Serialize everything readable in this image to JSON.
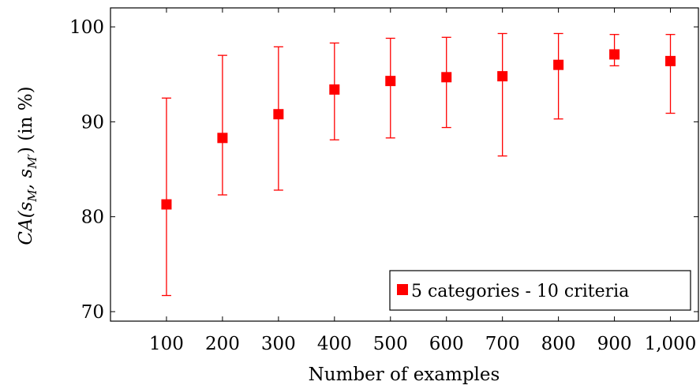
{
  "chart_data": {
    "type": "scatter",
    "xlabel": "Number of examples",
    "ylabel": "CA(s_M, s_M') (in %)",
    "ylabel_parts": {
      "prefix": "CA(s",
      "sub1": "M",
      "mid": ", s",
      "sub2": "M′",
      "suffix": ") (in %)"
    },
    "x_tick_labels": [
      "100",
      "200",
      "300",
      "400",
      "500",
      "600",
      "700",
      "800",
      "900",
      "1,000"
    ],
    "y_ticks": [
      70,
      80,
      90,
      100
    ],
    "y_tick_labels": [
      "70",
      "80",
      "90",
      "100"
    ],
    "xlim": [
      0,
      1050
    ],
    "ylim": [
      69,
      102
    ],
    "grid": false,
    "legend_position": "bottom-right",
    "series": [
      {
        "name": "5 categories - 10 criteria",
        "color": "#ff0000",
        "marker": "square",
        "x": [
          100,
          200,
          300,
          400,
          500,
          600,
          700,
          800,
          900,
          1000
        ],
        "y": [
          81.3,
          88.3,
          90.8,
          93.4,
          94.3,
          94.7,
          94.8,
          96.0,
          97.1,
          96.4
        ],
        "y_low": [
          71.7,
          82.3,
          82.8,
          88.1,
          88.3,
          89.4,
          86.4,
          90.3,
          95.9,
          90.9
        ],
        "y_high": [
          92.5,
          97.0,
          97.9,
          98.3,
          98.8,
          98.9,
          99.3,
          99.3,
          99.2,
          99.2
        ]
      }
    ]
  }
}
